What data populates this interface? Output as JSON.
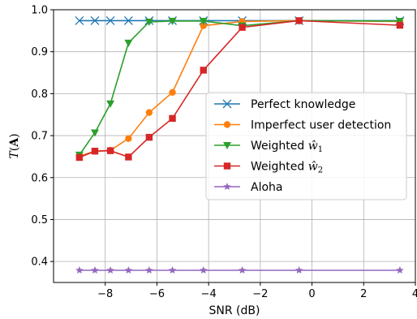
{
  "chart_data": {
    "type": "line",
    "xlabel": "SNR (dB)",
    "ylabel": "T(A)",
    "ylabel_parts": {
      "base": "T",
      "open": "(",
      "arg": "A",
      "close": ")"
    },
    "xlim": [
      -10,
      4
    ],
    "ylim": [
      0.35,
      1.0
    ],
    "xticks": [
      -8,
      -6,
      -4,
      -2,
      0,
      2,
      4
    ],
    "xtick_labels": [
      "−8",
      "−6",
      "−4",
      "−2",
      "0",
      "2",
      "4"
    ],
    "yticks": [
      0.4,
      0.5,
      0.6,
      0.7,
      0.8,
      0.9,
      1.0
    ],
    "ytick_labels": [
      "0.4",
      "0.5",
      "0.6",
      "0.7",
      "0.8",
      "0.9",
      "1.0"
    ],
    "grid": true,
    "legend_position": "center-right",
    "series": [
      {
        "name": "Perfect knowledge",
        "name_parts": {
          "text": "Perfect knowledge",
          "math": "",
          "sub": ""
        },
        "color": "#1f77b4",
        "marker": "x",
        "x": [
          -9,
          -8.4,
          -7.8,
          -7.1,
          -6.3,
          -5.4,
          -4.2,
          -2.7,
          -0.5,
          3.4
        ],
        "y": [
          0.974,
          0.974,
          0.974,
          0.974,
          0.974,
          0.974,
          0.974,
          0.974,
          0.974,
          0.974
        ]
      },
      {
        "name": "Imperfect user detection",
        "name_parts": {
          "text": "Imperfect user detection",
          "math": "",
          "sub": ""
        },
        "color": "#ff7f0e",
        "marker": "o",
        "x": [
          -9,
          -8.4,
          -7.8,
          -7.1,
          -6.3,
          -5.4,
          -4.2,
          -2.7,
          -0.5,
          3.4
        ],
        "y": [
          0.651,
          0.663,
          0.665,
          0.693,
          0.755,
          0.803,
          0.962,
          0.972,
          0.974,
          0.972
        ]
      },
      {
        "name": "Weighted ŵ1",
        "name_parts": {
          "text": "Weighted ",
          "math": "ŵ",
          "sub": "1"
        },
        "color": "#2ca02c",
        "marker": "v",
        "x": [
          -9,
          -8.4,
          -7.8,
          -7.1,
          -6.3,
          -5.4,
          -4.2,
          -2.7,
          -0.5,
          3.4
        ],
        "y": [
          0.654,
          0.707,
          0.776,
          0.921,
          0.971,
          0.973,
          0.973,
          0.962,
          0.974,
          0.973
        ]
      },
      {
        "name": "Weighted ŵ2",
        "name_parts": {
          "text": "Weighted ",
          "math": "ŵ",
          "sub": "2"
        },
        "color": "#d62728",
        "marker": "s",
        "x": [
          -9,
          -8.4,
          -7.8,
          -7.1,
          -6.3,
          -5.4,
          -4.2,
          -2.7,
          -0.5,
          3.4
        ],
        "y": [
          0.648,
          0.663,
          0.664,
          0.649,
          0.696,
          0.741,
          0.856,
          0.958,
          0.974,
          0.963
        ]
      },
      {
        "name": "Aloha",
        "name_parts": {
          "text": "Aloha",
          "math": "",
          "sub": ""
        },
        "color": "#9467bd",
        "marker": "*",
        "x": [
          -9,
          -8.4,
          -7.8,
          -7.1,
          -6.3,
          -5.4,
          -4.2,
          -2.7,
          -0.5,
          3.4
        ],
        "y": [
          0.379,
          0.379,
          0.379,
          0.379,
          0.379,
          0.379,
          0.379,
          0.379,
          0.379,
          0.379
        ]
      }
    ]
  }
}
